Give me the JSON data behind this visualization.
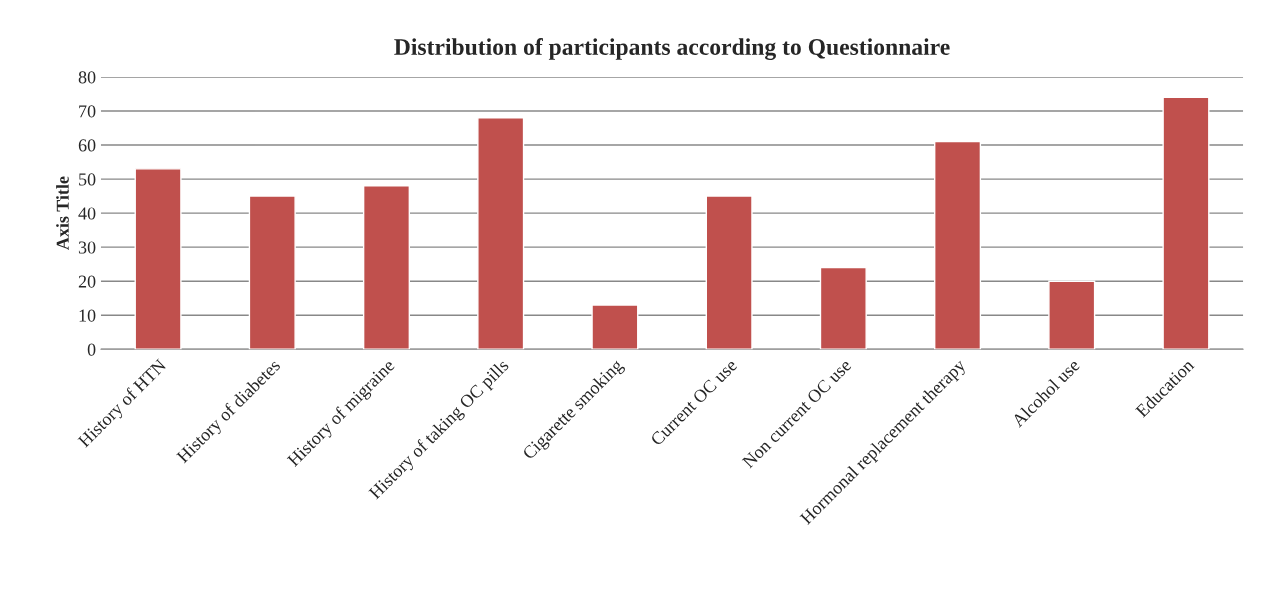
{
  "chart_data": {
    "type": "bar",
    "title": "Distribution of participants according to Questionnaire",
    "ylabel": "Axis Title",
    "categories": [
      "History of HTN",
      "History of diabetes",
      "History of migraine",
      "History of taking OC pills",
      "Cigarette smoking",
      "Current OC use",
      "Non current OC use",
      "Hormonal replacement therapy",
      "Alcohol use",
      "Education"
    ],
    "values": [
      53,
      45,
      48,
      68,
      13,
      45,
      24,
      61,
      20,
      74
    ],
    "color": "#c0504d",
    "ylim": [
      0,
      80
    ],
    "yticks": [
      0,
      10,
      20,
      30,
      40,
      50,
      60,
      70,
      80
    ],
    "grid": "y",
    "legend": false
  }
}
